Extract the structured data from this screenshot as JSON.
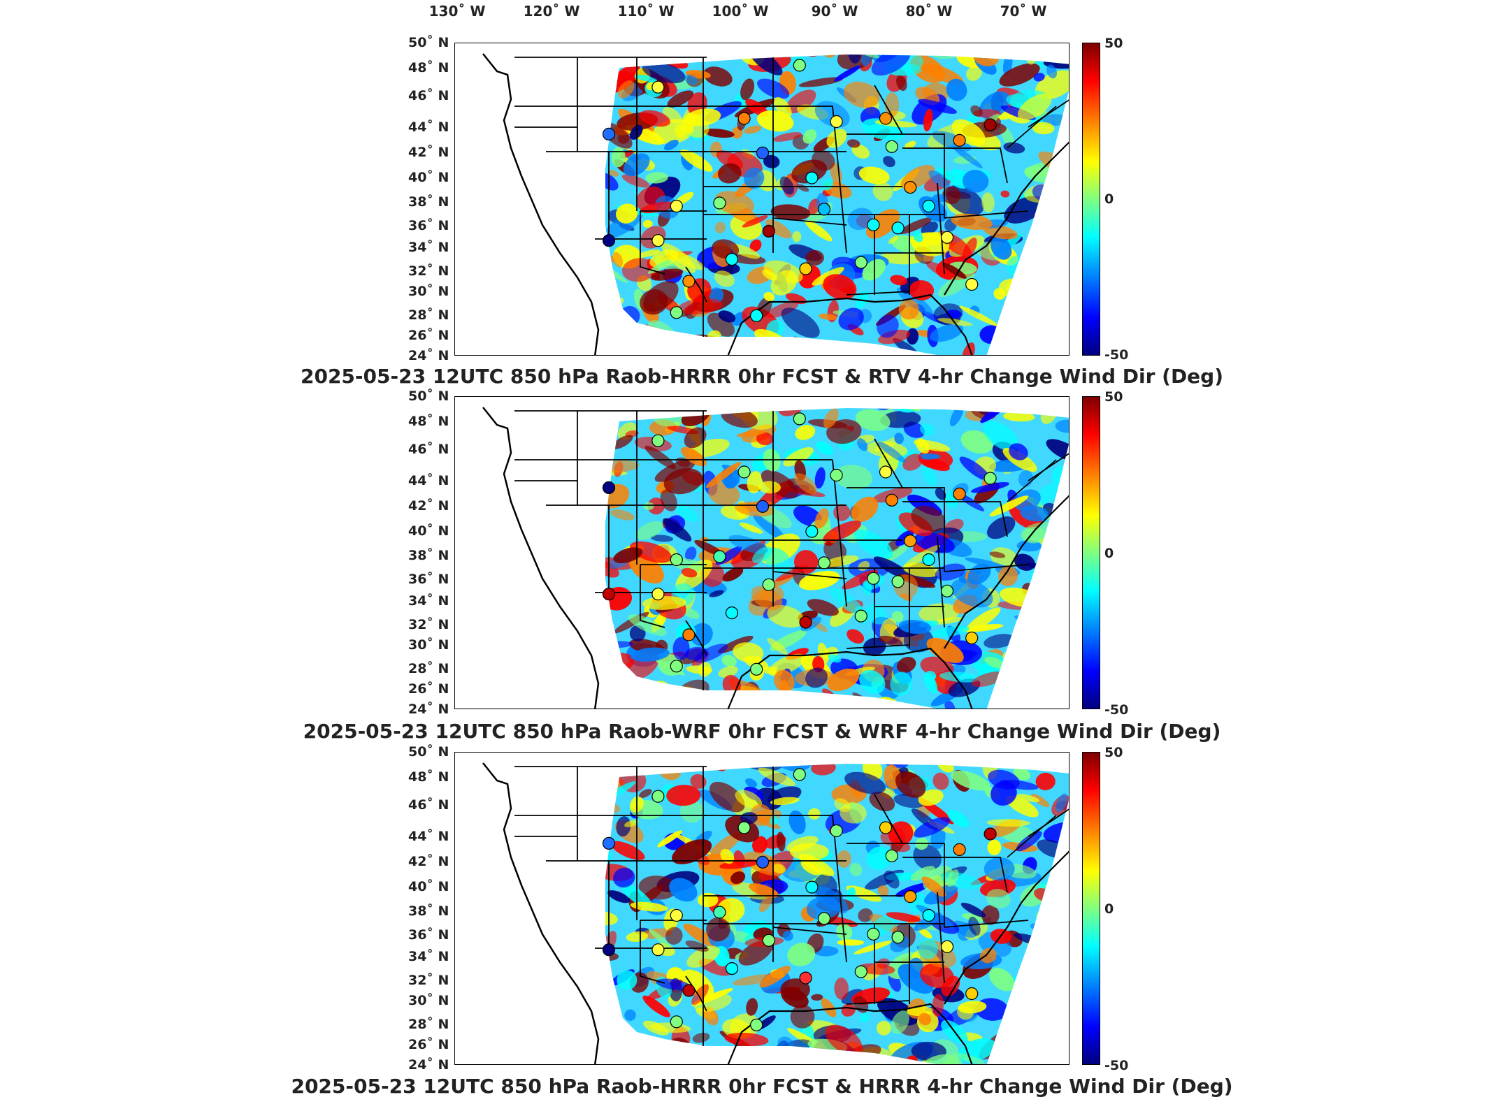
{
  "lon_labels": [
    "130˚ W",
    "120˚ W",
    "110˚ W",
    "100˚ W",
    "90˚ W",
    "80˚ W",
    "70˚ W"
  ],
  "lat_labels": [
    "50˚ N",
    "48˚ N",
    "46˚ N",
    "44˚ N",
    "42˚ N",
    "40˚ N",
    "38˚ N",
    "36˚ N",
    "34˚ N",
    "32˚ N",
    "30˚ N",
    "28˚ N",
    "26˚ N",
    "24˚ N"
  ],
  "colorbar": {
    "max_label": "50",
    "mid_label": "0",
    "min_label": "-50",
    "colors": [
      "#7f0000",
      "#ff0000",
      "#ff8000",
      "#ffff00",
      "#80ff80",
      "#00ffff",
      "#0080ff",
      "#0000ff",
      "#00007f"
    ]
  },
  "panels": [
    {
      "title": "2025-05-23 12UTC 850 hPa Raob-HRRR 0hr FCST & RTV 4-hr Change Wind Dir (Deg)"
    },
    {
      "title": "2025-05-23 12UTC 850 hPa Raob-WRF 0hr FCST & WRF 4-hr Change Wind Dir (Deg)"
    },
    {
      "title": "2025-05-23 12UTC 850 hPa Raob-HRRR 0hr FCST & HRRR 4-hr Change Wind Dir (Deg)"
    }
  ]
}
